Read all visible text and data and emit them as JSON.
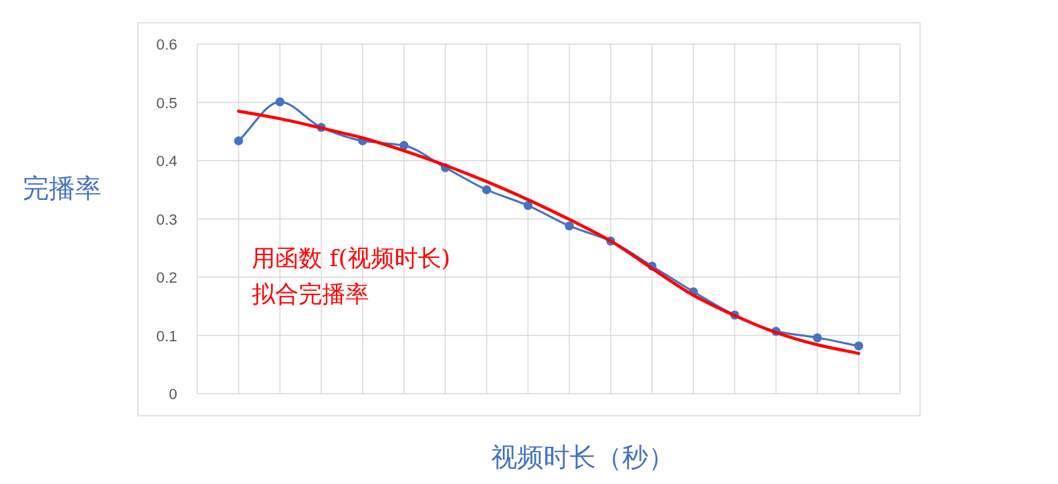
{
  "chart_data": {
    "type": "line",
    "ylabel": "完播率",
    "xlabel": "视频时长（秒）",
    "annotations": [
      "用函数 f(视频时长)\n拟合完播率"
    ],
    "categories": [
      null,
      null,
      null,
      null,
      null,
      null,
      null,
      null,
      null,
      null,
      null,
      null,
      null,
      null,
      null,
      null
    ],
    "series": [
      {
        "color": "#4472c4",
        "marker": "circle",
        "values": [
          0.434,
          0.501,
          0.457,
          0.434,
          0.426,
          0.388,
          0.35,
          0.323,
          0.288,
          0.262,
          0.219,
          0.175,
          0.135,
          0.107,
          0.096,
          0.082
        ]
      },
      {
        "type": "line",
        "color": "#ff0000",
        "marker": "none",
        "values": [
          0.485,
          0.472,
          0.456,
          0.439,
          0.417,
          0.392,
          0.364,
          0.333,
          0.299,
          0.262,
          0.215,
          0.169,
          0.134,
          0.105,
          0.084,
          0.069
        ]
      }
    ],
    "ylim": [
      0,
      0.6
    ],
    "yticks": [
      0,
      0.1,
      0.2,
      0.3,
      0.4,
      0.5,
      0.6
    ],
    "grid": true
  }
}
